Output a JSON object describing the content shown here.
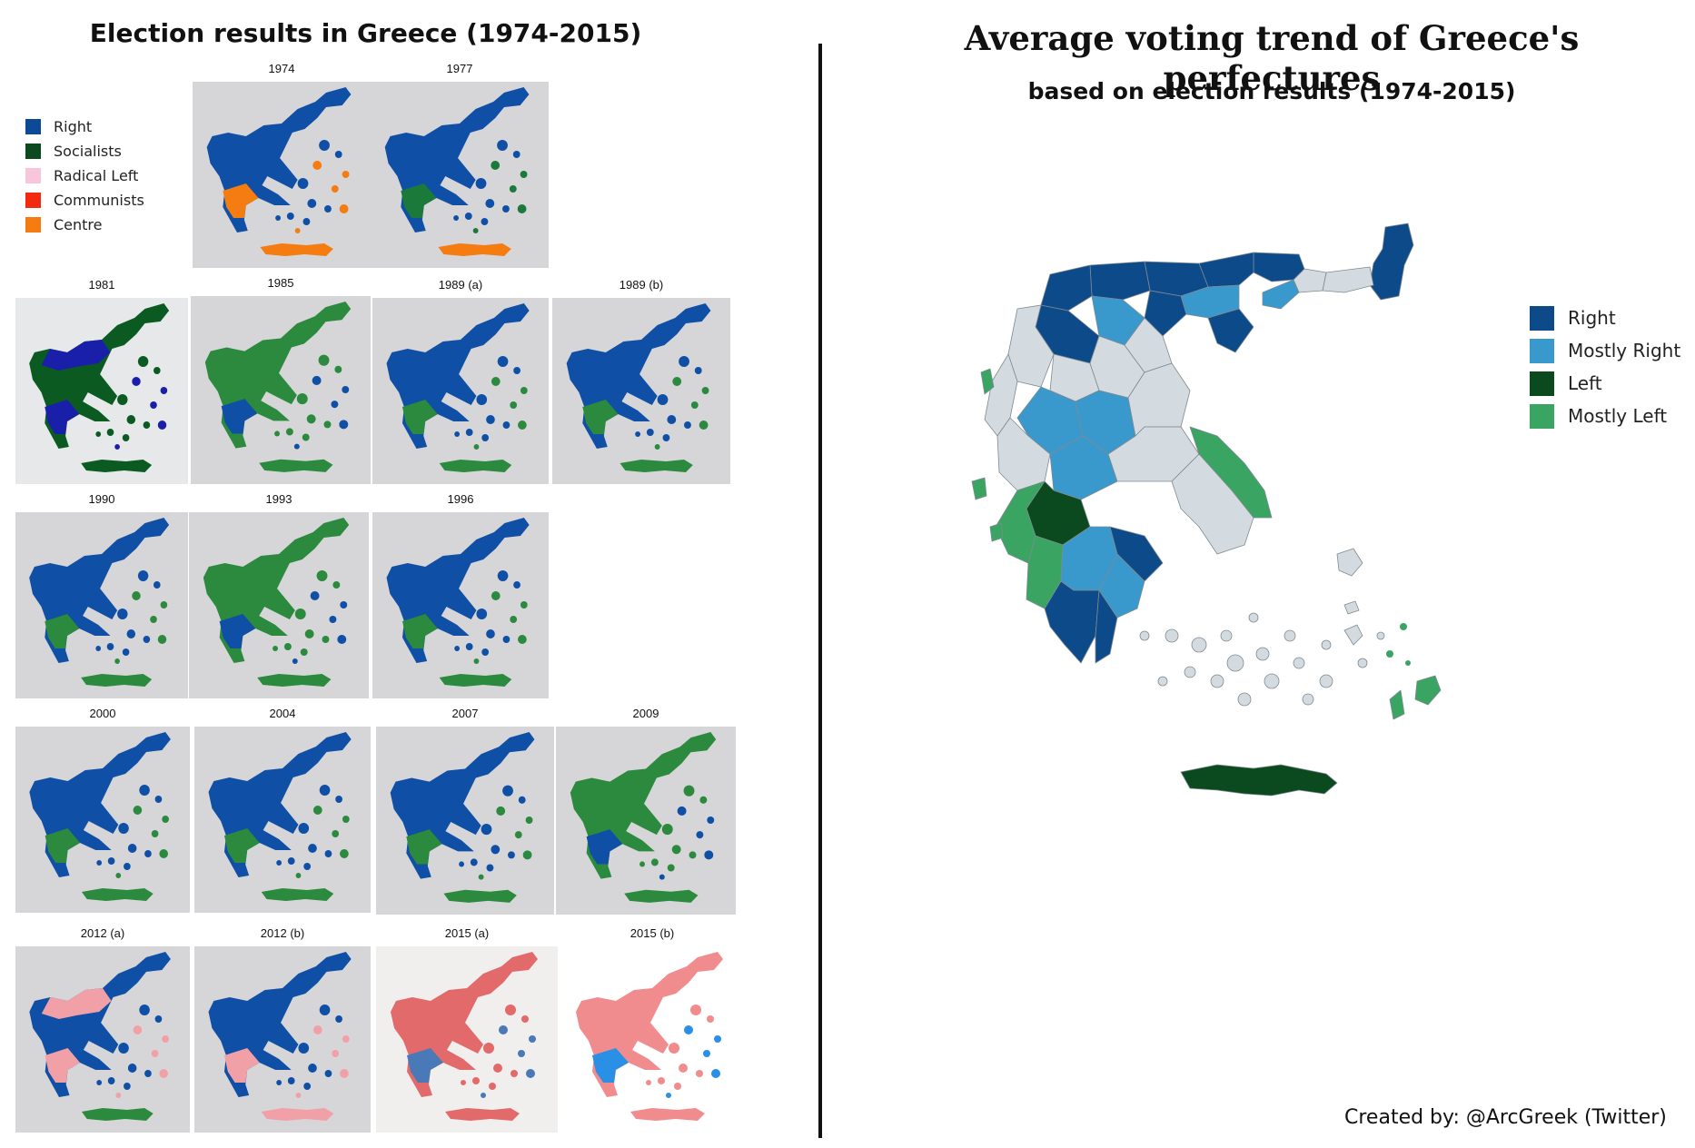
{
  "left": {
    "title": "Election results in Greece (1974-2015)",
    "legend": [
      {
        "label": "Right",
        "color": "#0d4a96"
      },
      {
        "label": "Socialists",
        "color": "#0b4a1e"
      },
      {
        "label": "Radical Left",
        "color": "#f7c6dc"
      },
      {
        "label": "Communists",
        "color": "#f12a10"
      },
      {
        "label": "Centre",
        "color": "#f47c10"
      }
    ],
    "maps": [
      {
        "label": "1974",
        "bg": "#d6d5d8",
        "main": "#0f4fa5",
        "second": "#f47c10",
        "crete_second": "#f47c10"
      },
      {
        "label": "1977",
        "bg": "#d6d5d8",
        "main": "#0f4fa5",
        "second": "#1b7a3a",
        "crete_second": "#f47c10"
      },
      {
        "label": "1981",
        "bg": "#e6e8e9",
        "main": "#0a5a22",
        "second": "#1a1faa",
        "crete_second": "#0a5a22"
      },
      {
        "label": "1985",
        "bg": "#d6d5d8",
        "main": "#2b8a3d",
        "second": "#0f4fa5",
        "crete_second": "#2b8a3d"
      },
      {
        "label": "1989 (a)",
        "bg": "#d6d5d8",
        "main": "#0f4fa5",
        "second": "#2b8a3d",
        "crete_second": "#2b8a3d"
      },
      {
        "label": "1989 (b)",
        "bg": "#d6d5d8",
        "main": "#0f4fa5",
        "second": "#2b8a3d",
        "crete_second": "#2b8a3d"
      },
      {
        "label": "1990",
        "bg": "#d6d5d8",
        "main": "#0f4fa5",
        "second": "#2b8a3d",
        "crete_second": "#2b8a3d"
      },
      {
        "label": "1993",
        "bg": "#d6d5d8",
        "main": "#2b8a3d",
        "second": "#0f4fa5",
        "crete_second": "#2b8a3d"
      },
      {
        "label": "1996",
        "bg": "#d6d5d8",
        "main": "#0f4fa5",
        "second": "#2b8a3d",
        "crete_second": "#2b8a3d"
      },
      {
        "label": "2000",
        "bg": "#d6d5d8",
        "main": "#0f4fa5",
        "second": "#2b8a3d",
        "crete_second": "#2b8a3d"
      },
      {
        "label": "2004",
        "bg": "#d6d5d8",
        "main": "#0f4fa5",
        "second": "#2b8a3d",
        "crete_second": "#2b8a3d"
      },
      {
        "label": "2007",
        "bg": "#d6d5d8",
        "main": "#0f4fa5",
        "second": "#2b8a3d",
        "crete_second": "#2b8a3d"
      },
      {
        "label": "2009",
        "bg": "#d6d5d8",
        "main": "#2b8a3d",
        "second": "#0f4fa5",
        "crete_second": "#2b8a3d"
      },
      {
        "label": "2012 (a)",
        "bg": "#d6d5d8",
        "main": "#0f4fa5",
        "second": "#f2a0a8",
        "crete_second": "#2b8a3d"
      },
      {
        "label": "2012 (b)",
        "bg": "#d6d5d8",
        "main": "#0f4fa5",
        "second": "#f2a0a8",
        "crete_second": "#f2a0a8"
      },
      {
        "label": "2015 (a)",
        "bg": "#f0efee",
        "main": "#e36a6a",
        "second": "#4a79b7",
        "crete_second": "#e36a6a"
      },
      {
        "label": "2015 (b)",
        "bg": "#ffffff",
        "main": "#f08c8e",
        "second": "#2a90e6",
        "crete_second": "#f08c8e"
      }
    ]
  },
  "right": {
    "title": "Average voting trend of Greece's perfectures",
    "subtitle": "based on election results (1974-2015)",
    "legend": [
      {
        "label": "Right",
        "color": "#0d4a8a"
      },
      {
        "label": "Mostly Right",
        "color": "#3a99cc"
      },
      {
        "label": "Left",
        "color": "#0b4a1e"
      },
      {
        "label": "Mostly Left",
        "color": "#3aa563"
      }
    ],
    "neutral_color": "#d4dbe0",
    "credit": "Created by: @ArcGreek (Twitter)"
  }
}
